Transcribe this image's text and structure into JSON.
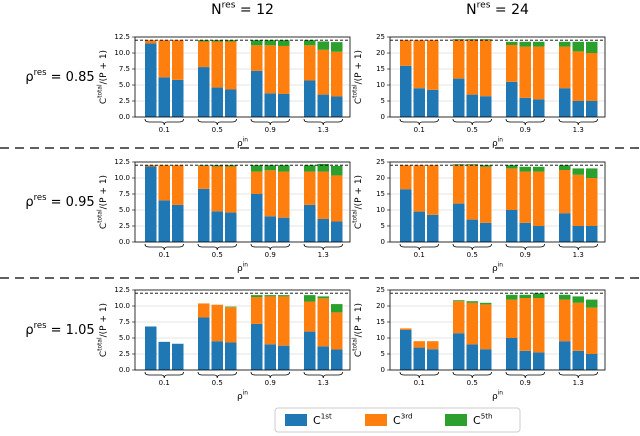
{
  "column_titles": [
    {
      "text": "N",
      "sup": "res",
      "rest": " = 12"
    },
    {
      "text": "N",
      "sup": "res",
      "rest": " = 24"
    }
  ],
  "row_labels": [
    {
      "text": "ρ",
      "sup": "res",
      "rest": " = 0.85"
    },
    {
      "text": "ρ",
      "sup": "res",
      "rest": " = 0.95"
    },
    {
      "text": "ρ",
      "sup": "res",
      "rest": " = 1.05"
    }
  ],
  "chart_data": [
    {
      "type": "bar",
      "stacked": true,
      "grid": true,
      "hline": 12,
      "xlabel": {
        "text": "ρ",
        "sup": "in"
      },
      "ylabel": {
        "text": "C",
        "sup": "total",
        "rest": "/(P + 1)"
      },
      "categories": [
        null,
        "0.1",
        null,
        null,
        "0.5",
        null,
        null,
        "0.9",
        null,
        null,
        "1.3",
        null
      ],
      "ylim": [
        0,
        12.5
      ],
      "yticks": [
        {
          "value": 0,
          "label": "0.0"
        },
        {
          "value": 2.5,
          "label": "2.5"
        },
        {
          "value": 5,
          "label": "5.0"
        },
        {
          "value": 7.5,
          "label": "7.5"
        },
        {
          "value": 10,
          "label": "10.0"
        },
        {
          "value": 12.5,
          "label": "12.5"
        }
      ],
      "series": [
        {
          "name": {
            "text": "C",
            "sup": "1st"
          },
          "color": "#1f77b4",
          "values": [
            11.5,
            6.2,
            5.8,
            7.8,
            4.6,
            4.3,
            7.2,
            3.7,
            3.6,
            5.7,
            3.5,
            3.2
          ]
        },
        {
          "name": {
            "text": "C",
            "sup": "3rd"
          },
          "color": "#ff7f0e",
          "values": [
            0.5,
            5.8,
            6.2,
            4,
            7.2,
            7.5,
            4,
            7.5,
            7.5,
            5.5,
            7,
            7
          ]
        },
        {
          "name": {
            "text": "C",
            "sup": "5th"
          },
          "color": "#2ca02c",
          "values": [
            0,
            0,
            0,
            0.2,
            0.2,
            0.2,
            0.8,
            0.8,
            0.9,
            0.8,
            1.3,
            1.5
          ]
        }
      ]
    },
    {
      "type": "bar",
      "stacked": true,
      "grid": true,
      "hline": 24,
      "xlabel": {
        "text": "ρ",
        "sup": "in"
      },
      "ylabel": {
        "text": "C",
        "sup": "total",
        "rest": "/(P + 1)"
      },
      "categories": [
        null,
        "0.1",
        null,
        null,
        "0.5",
        null,
        null,
        "0.9",
        null,
        null,
        "1.3",
        null
      ],
      "ylim": [
        0,
        25
      ],
      "yticks": [
        0,
        5,
        10,
        15,
        20,
        25
      ],
      "series": [
        {
          "name": {
            "text": "C",
            "sup": "1st"
          },
          "color": "#1f77b4",
          "values": [
            16,
            9,
            8.5,
            12,
            7,
            6.5,
            11,
            6,
            5.5,
            9,
            5,
            5
          ]
        },
        {
          "name": {
            "text": "C",
            "sup": "3rd"
          },
          "color": "#ff7f0e",
          "values": [
            8,
            15,
            15.5,
            12,
            17,
            17.5,
            11.5,
            16,
            16.5,
            13,
            15.5,
            15
          ]
        },
        {
          "name": {
            "text": "C",
            "sup": "5th"
          },
          "color": "#2ca02c",
          "values": [
            0,
            0,
            0,
            0.3,
            0.3,
            0.3,
            1,
            1.5,
            1.5,
            1.5,
            3,
            3.5
          ]
        }
      ]
    },
    {
      "type": "bar",
      "stacked": true,
      "grid": true,
      "hline": 12,
      "xlabel": {
        "text": "ρ",
        "sup": "in"
      },
      "ylabel": {
        "text": "C",
        "sup": "total",
        "rest": "/(P + 1)"
      },
      "categories": [
        null,
        "0.1",
        null,
        null,
        "0.5",
        null,
        null,
        "0.9",
        null,
        null,
        "1.3",
        null
      ],
      "ylim": [
        0,
        12.5
      ],
      "yticks": [
        {
          "value": 0,
          "label": "0.0"
        },
        {
          "value": 2.5,
          "label": "2.5"
        },
        {
          "value": 5,
          "label": "5.0"
        },
        {
          "value": 7.5,
          "label": "7.5"
        },
        {
          "value": 10,
          "label": "10.0"
        },
        {
          "value": 12.5,
          "label": "12.5"
        }
      ],
      "series": [
        {
          "name": {
            "text": "C",
            "sup": "1st"
          },
          "color": "#1f77b4",
          "values": [
            11.8,
            6.5,
            5.8,
            8.3,
            4.8,
            4.6,
            7.5,
            4,
            3.8,
            5.8,
            3.6,
            3.2
          ]
        },
        {
          "name": {
            "text": "C",
            "sup": "3rd"
          },
          "color": "#ff7f0e",
          "values": [
            0.2,
            5.5,
            6.2,
            3.6,
            7,
            7.2,
            3.5,
            7.2,
            7.2,
            5.2,
            7.4,
            7.2
          ]
        },
        {
          "name": {
            "text": "C",
            "sup": "5th"
          },
          "color": "#2ca02c",
          "values": [
            0,
            0,
            0,
            0.1,
            0.2,
            0.2,
            1,
            0.8,
            1,
            1,
            1.2,
            1.5
          ]
        }
      ]
    },
    {
      "type": "bar",
      "stacked": true,
      "grid": true,
      "hline": 24,
      "xlabel": {
        "text": "ρ",
        "sup": "in"
      },
      "ylabel": {
        "text": "C",
        "sup": "total",
        "rest": "/(P + 1)"
      },
      "categories": [
        null,
        "0.1",
        null,
        null,
        "0.5",
        null,
        null,
        "0.9",
        null,
        null,
        "1.3",
        null
      ],
      "ylim": [
        0,
        25
      ],
      "yticks": [
        0,
        5,
        10,
        15,
        20,
        25
      ],
      "series": [
        {
          "name": {
            "text": "C",
            "sup": "1st"
          },
          "color": "#1f77b4",
          "values": [
            16.5,
            9.5,
            8.5,
            12,
            7,
            6,
            10,
            6,
            5,
            9,
            5,
            5
          ]
        },
        {
          "name": {
            "text": "C",
            "sup": "3rd"
          },
          "color": "#ff7f0e",
          "values": [
            7.5,
            14.5,
            15.5,
            12,
            17,
            17.5,
            13,
            16,
            17,
            13.5,
            16,
            15
          ]
        },
        {
          "name": {
            "text": "C",
            "sup": "5th"
          },
          "color": "#2ca02c",
          "values": [
            0,
            0,
            0,
            0.3,
            0.3,
            0.5,
            1,
            1.5,
            1.5,
            1.5,
            2,
            3
          ]
        }
      ]
    },
    {
      "type": "bar",
      "stacked": true,
      "grid": true,
      "hline": 12,
      "xlabel": {
        "text": "ρ",
        "sup": "in"
      },
      "ylabel": {
        "text": "C",
        "sup": "total",
        "rest": "/(P + 1)"
      },
      "categories": [
        null,
        "0.1",
        null,
        null,
        "0.5",
        null,
        null,
        "0.9",
        null,
        null,
        "1.3",
        null
      ],
      "ylim": [
        0,
        12.5
      ],
      "yticks": [
        {
          "value": 0,
          "label": "0.0"
        },
        {
          "value": 2.5,
          "label": "2.5"
        },
        {
          "value": 5,
          "label": "5.0"
        },
        {
          "value": 7.5,
          "label": "7.5"
        },
        {
          "value": 10,
          "label": "10.0"
        },
        {
          "value": 12.5,
          "label": "12.5"
        }
      ],
      "series": [
        {
          "name": {
            "text": "C",
            "sup": "1st"
          },
          "color": "#1f77b4",
          "values": [
            6.8,
            4.4,
            4.1,
            8.2,
            4.5,
            4.3,
            7.2,
            4,
            3.8,
            6,
            3.7,
            3.2
          ]
        },
        {
          "name": {
            "text": "C",
            "sup": "3rd"
          },
          "color": "#ff7f0e",
          "values": [
            0,
            0,
            0,
            2.2,
            5.7,
            5.5,
            4.2,
            7.5,
            7.7,
            4.7,
            7.5,
            5.8
          ]
        },
        {
          "name": {
            "text": "C",
            "sup": "5th"
          },
          "color": "#2ca02c",
          "values": [
            0,
            0,
            0,
            0,
            0,
            0.1,
            0.3,
            0.2,
            0.2,
            1,
            0.3,
            1.3
          ]
        }
      ]
    },
    {
      "type": "bar",
      "stacked": true,
      "grid": true,
      "hline": 24,
      "xlabel": {
        "text": "ρ",
        "sup": "in"
      },
      "ylabel": {
        "text": "C",
        "sup": "total",
        "rest": "/(P + 1)"
      },
      "categories": [
        null,
        "0.1",
        null,
        null,
        "0.5",
        null,
        null,
        "0.9",
        null,
        null,
        "1.3",
        null
      ],
      "ylim": [
        0,
        25
      ],
      "yticks": [
        0,
        5,
        10,
        15,
        20,
        25
      ],
      "series": [
        {
          "name": {
            "text": "C",
            "sup": "1st"
          },
          "color": "#1f77b4",
          "values": [
            12.5,
            7,
            6.5,
            11.5,
            8,
            6.5,
            10,
            6,
            5.5,
            9,
            6,
            5
          ]
        },
        {
          "name": {
            "text": "C",
            "sup": "3rd"
          },
          "color": "#ff7f0e",
          "values": [
            0.5,
            2,
            2.5,
            10,
            13,
            14,
            12,
            16.5,
            17,
            13,
            15,
            14.5
          ]
        },
        {
          "name": {
            "text": "C",
            "sup": "5th"
          },
          "color": "#2ca02c",
          "values": [
            0,
            0,
            0,
            0.3,
            0.5,
            0.5,
            1.5,
            1,
            1.5,
            1.5,
            2,
            2.5
          ]
        }
      ]
    }
  ]
}
